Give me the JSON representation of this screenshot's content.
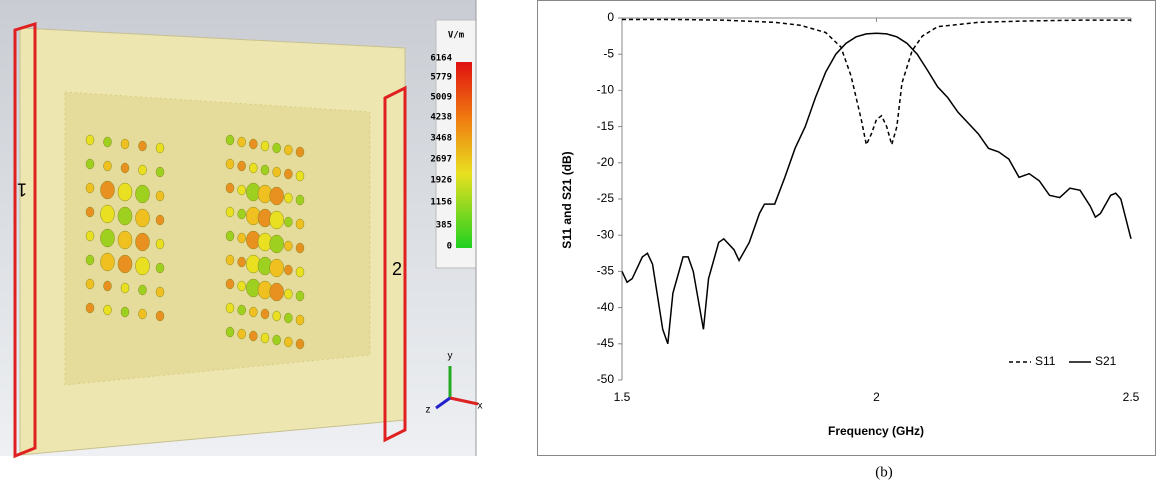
{
  "field_plot": {
    "colorbar": {
      "unit": "V/m",
      "labels": [
        6164,
        5779,
        5009,
        4238,
        3468,
        2697,
        1926,
        1156,
        385,
        0
      ]
    },
    "ports": [
      "1",
      "2"
    ],
    "axes": [
      "y",
      "z",
      "x"
    ]
  },
  "chart_data": {
    "type": "line",
    "caption": "(b)",
    "x_label": "Frequency (GHz)",
    "y_label": "S11 and S21 (dB)",
    "xlim": [
      1.5,
      2.5
    ],
    "xticks": [
      1.5,
      2,
      2.5
    ],
    "ylim": [
      -50,
      0
    ],
    "yticks": [
      0,
      -5,
      -10,
      -15,
      -20,
      -25,
      -30,
      -35,
      -40,
      -45,
      -50
    ],
    "legend": "lower right",
    "series": [
      {
        "name": "S11",
        "color": "#000000",
        "line_style": "dashed",
        "x": [
          1.5,
          1.6,
          1.7,
          1.8,
          1.85,
          1.9,
          1.93,
          1.95,
          1.97,
          1.98,
          1.99,
          2.0,
          2.01,
          2.02,
          2.03,
          2.04,
          2.05,
          2.07,
          2.09,
          2.12,
          2.2,
          2.3,
          2.4,
          2.5
        ],
        "values": [
          -0.2,
          -0.2,
          -0.3,
          -0.6,
          -1,
          -2,
          -4,
          -8,
          -14,
          -17.5,
          -16,
          -14,
          -13.5,
          -15,
          -17.5,
          -15,
          -9,
          -4.5,
          -2.5,
          -1.2,
          -0.6,
          -0.4,
          -0.3,
          -0.3
        ]
      },
      {
        "name": "S21",
        "color": "#000000",
        "line_style": "solid",
        "x": [
          1.5,
          1.51,
          1.52,
          1.54,
          1.55,
          1.56,
          1.58,
          1.59,
          1.6,
          1.62,
          1.63,
          1.64,
          1.66,
          1.67,
          1.69,
          1.7,
          1.72,
          1.73,
          1.75,
          1.77,
          1.78,
          1.8,
          1.82,
          1.84,
          1.86,
          1.88,
          1.9,
          1.92,
          1.94,
          1.96,
          1.98,
          2.0,
          2.02,
          2.04,
          2.06,
          2.08,
          2.1,
          2.12,
          2.14,
          2.16,
          2.18,
          2.2,
          2.22,
          2.24,
          2.26,
          2.28,
          2.3,
          2.32,
          2.34,
          2.36,
          2.38,
          2.4,
          2.42,
          2.43,
          2.44,
          2.46,
          2.47,
          2.48,
          2.5
        ],
        "values": [
          -35,
          -36.5,
          -36,
          -33,
          -32.5,
          -34,
          -43,
          -45,
          -38,
          -33,
          -33,
          -35,
          -43,
          -36,
          -31,
          -30.5,
          -32,
          -33.5,
          -31,
          -27,
          -25.7,
          -25.7,
          -22,
          -18,
          -15,
          -11,
          -7.5,
          -5,
          -3.5,
          -2.6,
          -2.2,
          -2.1,
          -2.2,
          -2.6,
          -3.5,
          -5,
          -7.2,
          -9.5,
          -11,
          -13,
          -14.5,
          -16,
          -18,
          -18.5,
          -19.5,
          -22,
          -21.5,
          -22.5,
          -24.5,
          -24.8,
          -23.5,
          -23.8,
          -26,
          -27.5,
          -27,
          -24.5,
          -24.2,
          -25,
          -30.5
        ]
      }
    ]
  }
}
